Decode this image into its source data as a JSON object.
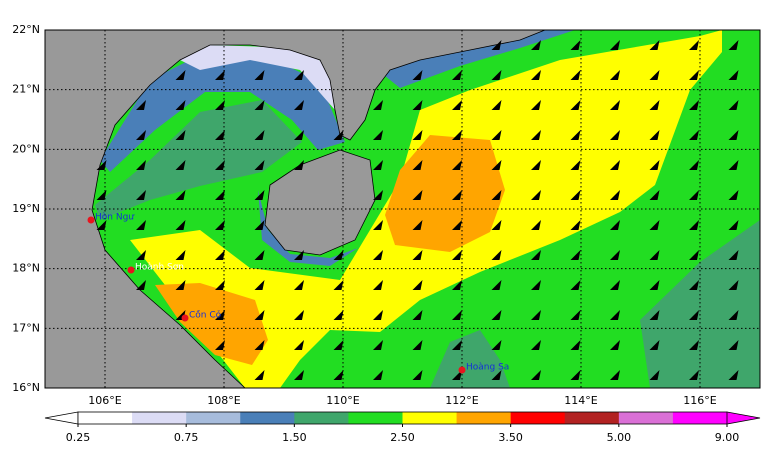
{
  "map": {
    "lat_labels": [
      "22°N",
      "21°N",
      "20°N",
      "19°N",
      "18°N",
      "17°N",
      "16°N"
    ],
    "lon_labels": [
      "106°E",
      "108°E",
      "110°E",
      "112°E",
      "114°E",
      "116°E"
    ],
    "places": [
      {
        "name": "Hòn Ngư"
      },
      {
        "name": "Hoành Sơn"
      },
      {
        "name": "Cồn Cỏ"
      },
      {
        "name": "Hoàng Sa"
      }
    ],
    "colorbar": {
      "colors": [
        "#ffffff",
        "#dcdcf5",
        "#a7bcdc",
        "#4a7fb8",
        "#3fa66b",
        "#22dd22",
        "#ffff00",
        "#ffa500",
        "#ff0000",
        "#b22222",
        "#da70d6",
        "#ff00ff"
      ],
      "labels": [
        "0.25",
        "0.75",
        "1.50",
        "2.50",
        "3.50",
        "5.00",
        "9.00"
      ]
    }
  }
}
